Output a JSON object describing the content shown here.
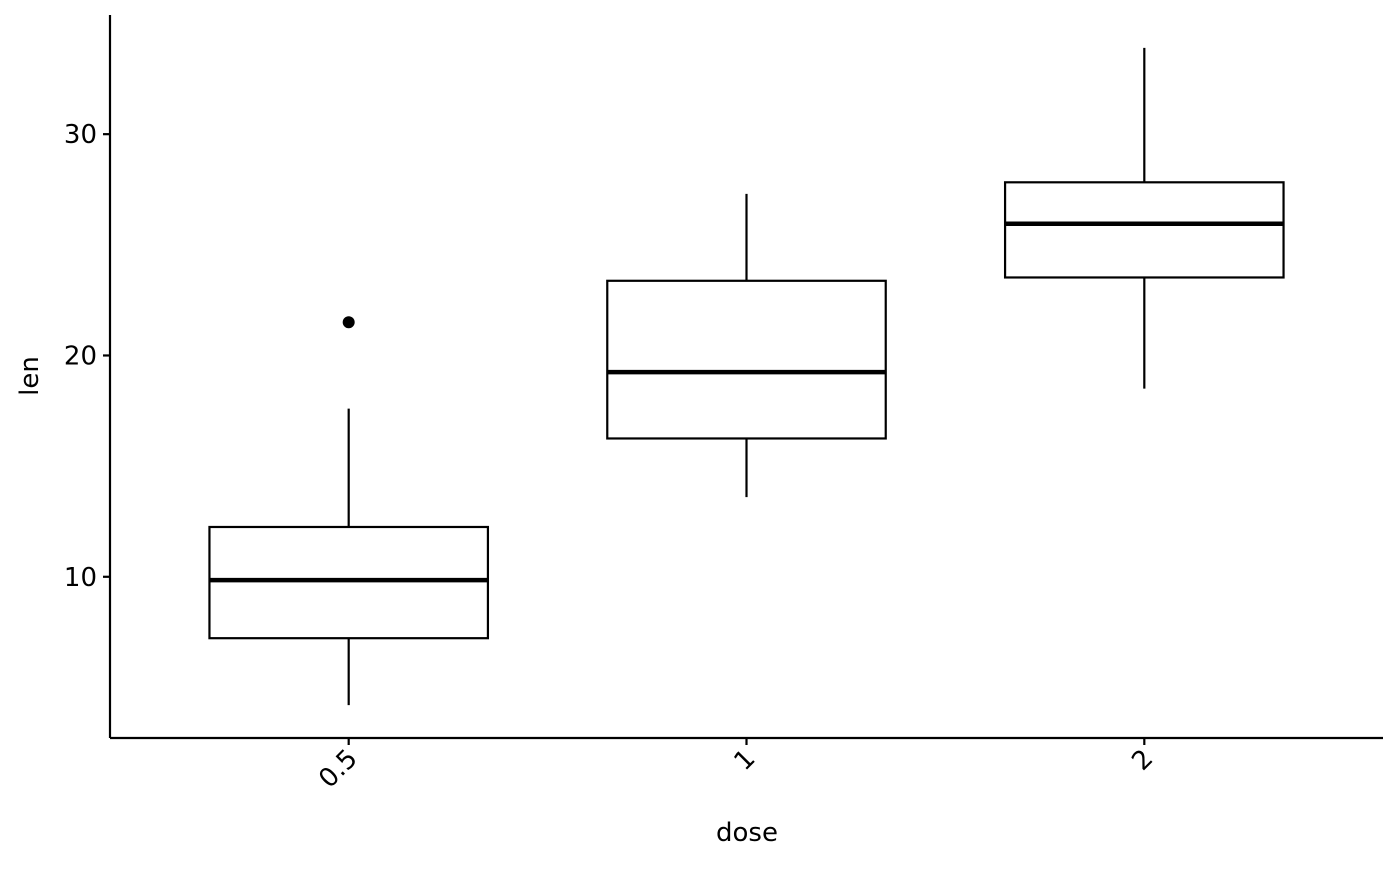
{
  "chart_data": {
    "type": "box",
    "x_label": "dose",
    "y_label": "len",
    "categories": [
      "0.5",
      "1",
      "2"
    ],
    "boxes": [
      {
        "min": 4.2,
        "q1": 7.225,
        "median": 9.85,
        "q3": 12.25,
        "max": 17.6,
        "outliers": [
          21.5
        ]
      },
      {
        "min": 13.6,
        "q1": 16.25,
        "median": 19.25,
        "q3": 23.375,
        "max": 27.3,
        "outliers": []
      },
      {
        "min": 18.5,
        "q1": 23.525,
        "median": 25.95,
        "q3": 27.825,
        "max": 33.9,
        "outliers": []
      }
    ],
    "color": "#000000",
    "ylim": [
      2.715,
      35.385
    ],
    "yticks": [
      10,
      20,
      30
    ]
  }
}
